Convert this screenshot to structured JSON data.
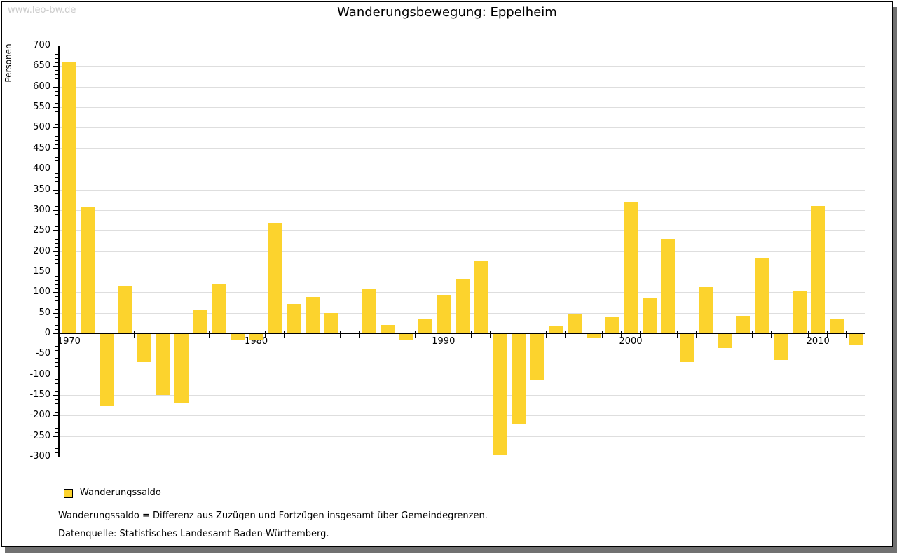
{
  "watermark": "www.leo-bw.de",
  "title": "Wanderungsbewegung: Eppelheim",
  "legend": {
    "label": "Wanderungssaldo"
  },
  "footnotes": {
    "definition": "Wanderungssaldo = Differenz aus Zuzügen und Fortzügen insgesamt über Gemeindegrenzen.",
    "source": "Datenquelle: Statistisches Landesamt Baden-Württemberg."
  },
  "colors": {
    "bar": "#fcd32d",
    "grid": "#dedede",
    "axis": "#000000",
    "watermark": "#cccccc",
    "shadow": "#717171"
  },
  "chart_data": {
    "type": "bar",
    "title": "Wanderungsbewegung: Eppelheim",
    "xlabel": "",
    "ylabel": "Personen",
    "ylim": [
      -300,
      700
    ],
    "ytick_step": 50,
    "ytick_minor_step": 10,
    "grid": true,
    "legend_position": "bottom-left",
    "x": [
      1970,
      1971,
      1972,
      1973,
      1974,
      1975,
      1976,
      1977,
      1978,
      1979,
      1980,
      1981,
      1982,
      1983,
      1984,
      1985,
      1986,
      1987,
      1988,
      1989,
      1990,
      1991,
      1992,
      1993,
      1994,
      1995,
      1996,
      1997,
      1998,
      1999,
      2000,
      2001,
      2002,
      2003,
      2004,
      2005,
      2006,
      2007,
      2008,
      2009,
      2010,
      2011,
      2012
    ],
    "x_tick_labels": [
      "1970",
      "1980",
      "1990",
      "2000",
      "2010"
    ],
    "series": [
      {
        "name": "Wanderungssaldo",
        "values": [
          660,
          307,
          -175,
          115,
          -68,
          -148,
          -167,
          57,
          120,
          -16,
          -13,
          268,
          72,
          88,
          50,
          2,
          107,
          20,
          -13,
          36,
          93,
          133,
          175,
          -295,
          -220,
          -113,
          18,
          47,
          -8,
          40,
          318,
          87,
          230,
          -68,
          113,
          -34,
          42,
          182,
          -63,
          102,
          310,
          35,
          -26
        ]
      }
    ]
  }
}
